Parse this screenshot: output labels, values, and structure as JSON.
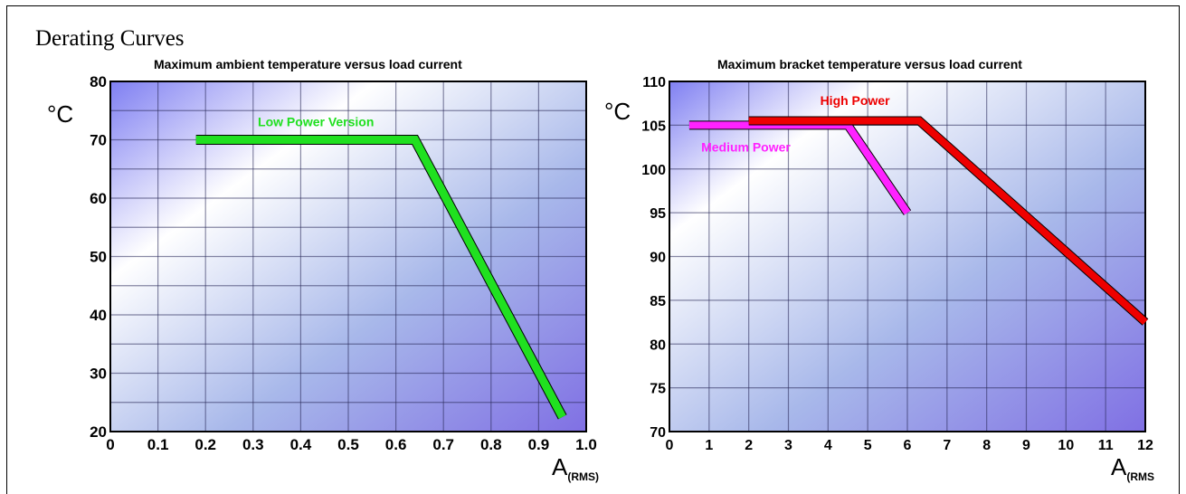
{
  "heading": "Derating Curves",
  "colors": {
    "low": "#20e020",
    "medium": "#ff22ff",
    "high": "#ee0000"
  },
  "chart_data": [
    {
      "type": "line",
      "title": "Maximum ambient temperature versus load current",
      "ylabel": "°C",
      "xlabel_main": "A",
      "xlabel_sub": "(RMS)",
      "xlim": [
        0,
        1.0
      ],
      "ylim": [
        20,
        80
      ],
      "xticks": [
        "0",
        "0.1",
        "0.2",
        "0.3",
        "0.4",
        "0.5",
        "0.6",
        "0.7",
        "0.8",
        "0.9",
        "1.0"
      ],
      "yticks": [
        "20",
        "30",
        "40",
        "50",
        "60",
        "70",
        "80"
      ],
      "grid": true,
      "series": [
        {
          "name": "Low Power Version",
          "color": "#20e020",
          "points": [
            [
              0.18,
              70
            ],
            [
              0.64,
              70
            ],
            [
              0.95,
              22.5
            ]
          ]
        }
      ]
    },
    {
      "type": "line",
      "title": "Maximum bracket temperature versus load current",
      "ylabel": "°C",
      "xlabel_main": "A",
      "xlabel_sub": "(RMS",
      "xlim": [
        0,
        12
      ],
      "ylim": [
        70,
        110
      ],
      "xticks": [
        "0",
        "1",
        "2",
        "3",
        "4",
        "5",
        "6",
        "7",
        "8",
        "9",
        "10",
        "11",
        "12"
      ],
      "yticks": [
        "70",
        "75",
        "80",
        "85",
        "90",
        "95",
        "100",
        "105",
        "110"
      ],
      "grid": true,
      "series": [
        {
          "name": "Medium Power",
          "color": "#ff22ff",
          "points": [
            [
              0.5,
              105
            ],
            [
              4.5,
              105
            ],
            [
              6,
              95
            ]
          ]
        },
        {
          "name": "High Power",
          "color": "#ee0000",
          "points": [
            [
              2,
              105.5
            ],
            [
              6.3,
              105.5
            ],
            [
              12,
              82.5
            ]
          ]
        }
      ]
    }
  ]
}
